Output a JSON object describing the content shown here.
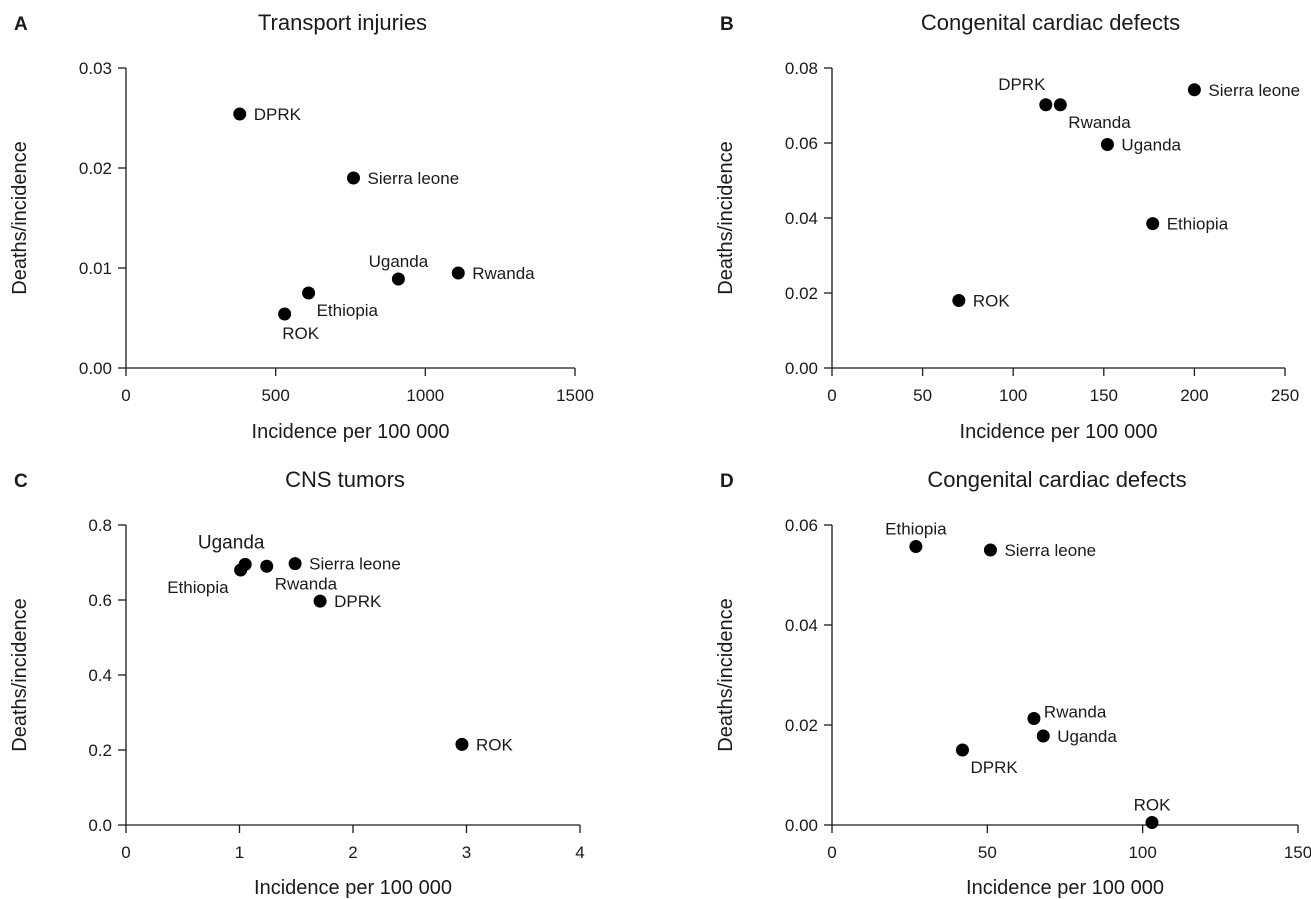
{
  "figure": {
    "y_axis_label": "Deaths/incidence",
    "x_axis_label": "Incidence per 100 000"
  },
  "chart_data": [
    {
      "type": "scatter",
      "panel": "A",
      "title": "Transport injuries",
      "xlabel": "Incidence per 100 000",
      "ylabel": "Deaths/incidence",
      "xlim": [
        0,
        1500
      ],
      "ylim": [
        0,
        0.03
      ],
      "xticks": [
        "0",
        "500",
        "1000",
        "1500"
      ],
      "xtick_values": [
        0,
        500,
        1000,
        1500
      ],
      "yticks": [
        "0.00",
        "0.01",
        "0.02",
        "0.03"
      ],
      "ytick_values": [
        0,
        0.01,
        0.02,
        0.03
      ],
      "points": [
        {
          "label": "DPRK",
          "x": 380,
          "y": 0.0254,
          "label_pos": "right"
        },
        {
          "label": "Sierra leone",
          "x": 760,
          "y": 0.019,
          "label_pos": "right"
        },
        {
          "label": "Uganda",
          "x": 910,
          "y": 0.0089,
          "label_pos": "above"
        },
        {
          "label": "Rwanda",
          "x": 1110,
          "y": 0.0095,
          "label_pos": "right"
        },
        {
          "label": "Ethiopia",
          "x": 610,
          "y": 0.0075,
          "label_pos": "below-right"
        },
        {
          "label": "ROK",
          "x": 530,
          "y": 0.0054,
          "label_pos": "below"
        }
      ]
    },
    {
      "type": "scatter",
      "panel": "B",
      "title": "Congenital cardiac defects",
      "xlabel": "Incidence per 100 000",
      "ylabel": "Deaths/incidence",
      "xlim": [
        0,
        250
      ],
      "ylim": [
        0,
        0.08
      ],
      "xticks": [
        "0",
        "50",
        "100",
        "150",
        "200",
        "250"
      ],
      "xtick_values": [
        0,
        50,
        100,
        150,
        200,
        250
      ],
      "yticks": [
        "0.00",
        "0.02",
        "0.04",
        "0.06",
        "0.08"
      ],
      "ytick_values": [
        0,
        0.02,
        0.04,
        0.06,
        0.08
      ],
      "points": [
        {
          "label": "DPRK",
          "x": 118,
          "y": 0.0702,
          "label_pos": "above-left"
        },
        {
          "label": "Rwanda",
          "x": 126,
          "y": 0.0702,
          "label_pos": "below-right"
        },
        {
          "label": "Sierra leone",
          "x": 200,
          "y": 0.0742,
          "label_pos": "right"
        },
        {
          "label": "Uganda",
          "x": 152,
          "y": 0.0596,
          "label_pos": "right"
        },
        {
          "label": "Ethiopia",
          "x": 177,
          "y": 0.0385,
          "label_pos": "right"
        },
        {
          "label": "ROK",
          "x": 70,
          "y": 0.018,
          "label_pos": "right"
        }
      ]
    },
    {
      "type": "scatter",
      "panel": "C",
      "title": "CNS tumors",
      "xlabel": "Incidence per 100 000",
      "ylabel": "Deaths/incidence",
      "xlim": [
        0,
        4
      ],
      "ylim": [
        0,
        0.8
      ],
      "xticks": [
        "0",
        "1",
        "2",
        "3",
        "4"
      ],
      "xtick_values": [
        0,
        1,
        2,
        3,
        4
      ],
      "yticks": [
        "0.0",
        "0.2",
        "0.4",
        "0.6",
        "0.8"
      ],
      "ytick_values": [
        0,
        0.2,
        0.4,
        0.6,
        0.8
      ],
      "points": [
        {
          "label": "Uganda",
          "x": 1.05,
          "y": 0.695,
          "label_pos": "above-big"
        },
        {
          "label": "Ethiopia",
          "x": 1.01,
          "y": 0.68,
          "label_pos": "below-left"
        },
        {
          "label": "Rwanda",
          "x": 1.24,
          "y": 0.69,
          "label_pos": "below-right"
        },
        {
          "label": "Sierra leone",
          "x": 1.49,
          "y": 0.697,
          "label_pos": "right"
        },
        {
          "label": "DPRK",
          "x": 1.71,
          "y": 0.597,
          "label_pos": "right"
        },
        {
          "label": "ROK",
          "x": 2.96,
          "y": 0.215,
          "label_pos": "right"
        }
      ]
    },
    {
      "type": "scatter",
      "panel": "D",
      "title": "Congenital cardiac defects",
      "xlabel": "Incidence per 100 000",
      "ylabel": "Deaths/incidence",
      "xlim": [
        0,
        150
      ],
      "ylim": [
        0,
        0.06
      ],
      "xticks": [
        "0",
        "50",
        "100",
        "150"
      ],
      "xtick_values": [
        0,
        50,
        100,
        150
      ],
      "yticks": [
        "0.00",
        "0.02",
        "0.04",
        "0.06"
      ],
      "ytick_values": [
        0,
        0.02,
        0.04,
        0.06
      ],
      "points": [
        {
          "label": "Ethiopia",
          "x": 27,
          "y": 0.0557,
          "label_pos": "above"
        },
        {
          "label": "Sierra leone",
          "x": 51,
          "y": 0.055,
          "label_pos": "right"
        },
        {
          "label": "Rwanda",
          "x": 65,
          "y": 0.0213,
          "label_pos": "above-right"
        },
        {
          "label": "Uganda",
          "x": 68,
          "y": 0.0178,
          "label_pos": "right"
        },
        {
          "label": "DPRK",
          "x": 42,
          "y": 0.015,
          "label_pos": "below-right"
        },
        {
          "label": "ROK",
          "x": 103,
          "y": 0.0005,
          "label_pos": "above"
        }
      ]
    }
  ]
}
